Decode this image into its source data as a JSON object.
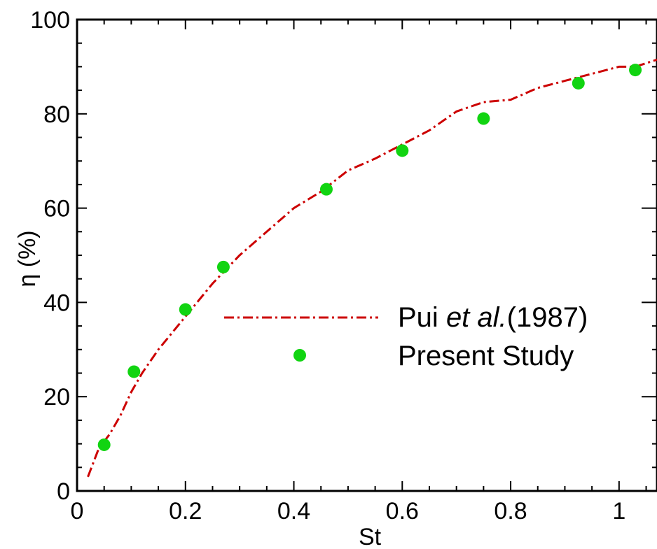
{
  "chart_data": {
    "type": "line",
    "xlabel": "St",
    "ylabel": "η (%)",
    "xlim": [
      0,
      1.07
    ],
    "ylim": [
      0,
      100
    ],
    "xticks": [
      0,
      0.2,
      0.4,
      0.6,
      0.8,
      1
    ],
    "xtick_labels": [
      "0",
      "0.2",
      "0.4",
      "0.6",
      "0.8",
      "1"
    ],
    "yticks": [
      0,
      20,
      40,
      60,
      80,
      100
    ],
    "ytick_labels": [
      "0",
      "20",
      "40",
      "60",
      "80",
      "100"
    ],
    "grid": false,
    "legend_position": "center-right",
    "series": [
      {
        "name": "Pui et al.(1987)",
        "legend_parts": [
          "Pui ",
          "et al.",
          "(1987)"
        ],
        "style": "dash-dot",
        "color": "#cc0000",
        "x": [
          0.02,
          0.04,
          0.06,
          0.08,
          0.1,
          0.12,
          0.15,
          0.2,
          0.25,
          0.3,
          0.35,
          0.4,
          0.45,
          0.5,
          0.55,
          0.6,
          0.65,
          0.7,
          0.75,
          0.8,
          0.85,
          0.9,
          0.95,
          1.0,
          1.03,
          1.07
        ],
        "y": [
          3,
          9,
          12,
          16,
          21,
          25,
          30,
          37,
          44,
          50,
          55,
          60,
          63.5,
          68,
          70.5,
          73.5,
          76.5,
          80.5,
          82.5,
          83,
          85.5,
          87,
          88.5,
          90,
          90,
          91.5
        ]
      },
      {
        "name": "Present Study",
        "style": "marker",
        "color": "#11d411",
        "x": [
          0.05,
          0.105,
          0.2,
          0.27,
          0.46,
          0.6,
          0.75,
          0.925,
          1.03
        ],
        "y": [
          9.8,
          25.3,
          38.5,
          47.5,
          64,
          72.2,
          79,
          86.5,
          89.3
        ]
      }
    ]
  }
}
